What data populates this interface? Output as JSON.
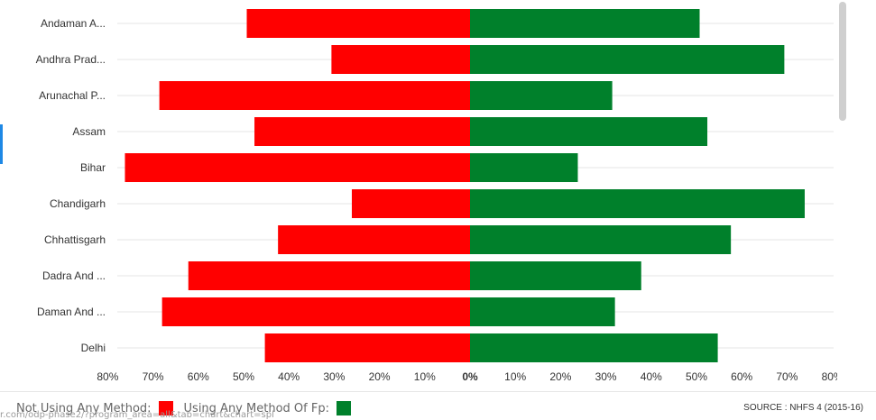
{
  "chart_data": {
    "type": "bar",
    "orientation": "horizontal-diverging",
    "categories": [
      "Andaman A...",
      "Andhra Prad...",
      "Arunachal P...",
      "Assam",
      "Bihar",
      "Chandigarh",
      "Chhattisgarh",
      "Dadra And ...",
      "Daman And ...",
      "Delhi"
    ],
    "series": [
      {
        "name": "Not Using Any Method",
        "color": "#ff0000",
        "values": [
          49.3,
          30.6,
          68.6,
          47.6,
          76.2,
          26.1,
          42.4,
          62.2,
          68.0,
          45.3
        ]
      },
      {
        "name": "Using Any Method Of Fp",
        "color": "#00802b",
        "values": [
          50.7,
          69.4,
          31.4,
          52.4,
          23.8,
          73.9,
          57.6,
          37.8,
          32.0,
          54.7
        ]
      }
    ],
    "xlim": [
      -80,
      80
    ],
    "xticks": [
      "80%",
      "70%",
      "60%",
      "50%",
      "40%",
      "30%",
      "20%",
      "10%",
      "0%",
      "10%",
      "20%",
      "30%",
      "40%",
      "50%",
      "60%",
      "70%",
      "80%"
    ],
    "grid": "horizontal",
    "legend_position": "bottom-left"
  },
  "legend": {
    "item1_label": "Not Using Any Method:",
    "item1_color": "#ff0000",
    "item2_label": "Using Any Method Of Fp:",
    "item2_color": "#00802b"
  },
  "source": "SOURCE : NHFS 4 (2015-16)",
  "url_fragment": "r.com/odp-phase2/?program_area=all&tab=chart&chart=spl"
}
